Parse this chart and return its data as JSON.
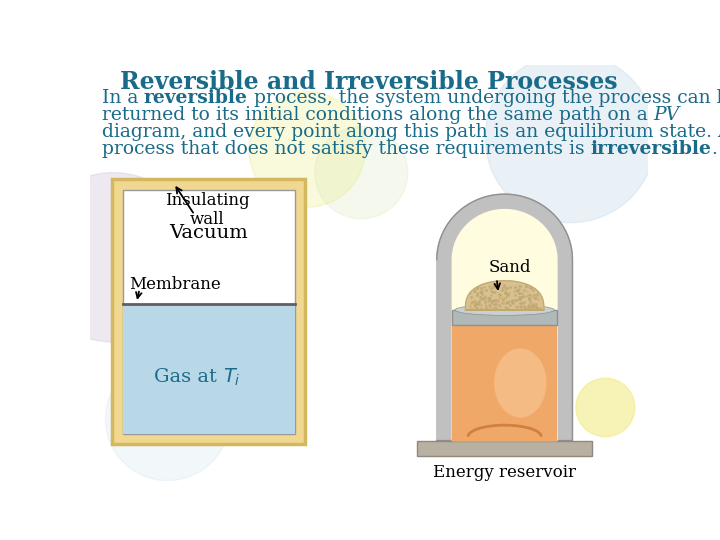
{
  "title": "Reversible and Irreversible Processes",
  "title_color": "#1a6b8a",
  "title_fontsize": 17,
  "body_color": "#1a6b8a",
  "body_fontsize": 13.5,
  "bg_color": "#ffffff",
  "dec_yellow_color": "#e8e870",
  "dec_blue_color": "#c0d8e8",
  "dec_purple_color": "#d0c0d8",
  "dec_green_color": "#d0e0a0",
  "left_outer_color": "#f0d890",
  "left_outer_edge": "#d4b860",
  "left_inner_color": "#ffffff",
  "left_gas_color": "#b8d8e8",
  "membrane_color": "#606060",
  "right_wall_color": "#c0c0c0",
  "right_wall_edge": "#909090",
  "right_inner_color": "#fffce0",
  "right_piston_color": "#b0b8b8",
  "right_piston_edge": "#909090",
  "right_gas_color": "#f0a868",
  "right_gas_edge": "#d08848",
  "right_sand_color": "#d8c090",
  "right_sand_edge": "#c0a870",
  "right_base_color": "#b8b0a0",
  "right_base_edge": "#908880",
  "energy_reservoir_text": "Energy reservoir",
  "insulating_wall_text": "Insulating\nwall",
  "vacuum_text": "Vacuum",
  "membrane_text": "Membrane",
  "sand_text": "Sand"
}
